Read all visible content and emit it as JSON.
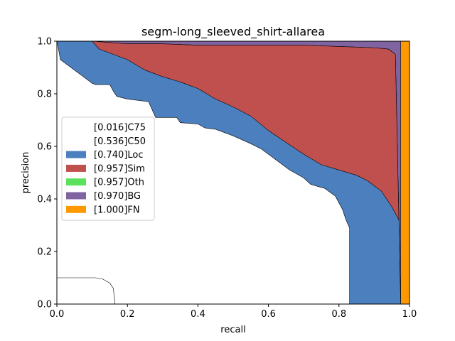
{
  "chart_data": {
    "type": "area",
    "title": "segm-long_sleeved_shirt-allarea",
    "xlabel": "recall",
    "ylabel": "precision",
    "xlim": [
      0,
      1
    ],
    "ylim": [
      0,
      1
    ],
    "xticks": [
      "0.0",
      "0.2",
      "0.4",
      "0.6",
      "0.8",
      "1.0"
    ],
    "yticks": [
      "0.0",
      "0.2",
      "0.4",
      "0.6",
      "0.8",
      "1.0"
    ],
    "grid": false,
    "legend_position": "center-left",
    "series": [
      {
        "name": "[0.016]C75",
        "color": "#ffffff",
        "points": [
          [
            0,
            0.1
          ],
          [
            0.11,
            0.1
          ],
          [
            0.13,
            0.095
          ],
          [
            0.15,
            0.08
          ],
          [
            0.16,
            0.06
          ],
          [
            0.165,
            0.0
          ]
        ]
      },
      {
        "name": "[0.536]C50",
        "color": "#ffffff",
        "points": [
          [
            0,
            1.0
          ],
          [
            0.002,
            0.99
          ],
          [
            0.01,
            0.93
          ],
          [
            0.04,
            0.9
          ],
          [
            0.06,
            0.88
          ],
          [
            0.08,
            0.86
          ],
          [
            0.1,
            0.84
          ],
          [
            0.11,
            0.835
          ],
          [
            0.15,
            0.835
          ],
          [
            0.16,
            0.81
          ],
          [
            0.17,
            0.79
          ],
          [
            0.2,
            0.78
          ],
          [
            0.26,
            0.77
          ],
          [
            0.28,
            0.71
          ],
          [
            0.34,
            0.71
          ],
          [
            0.35,
            0.69
          ],
          [
            0.4,
            0.685
          ],
          [
            0.42,
            0.67
          ],
          [
            0.45,
            0.665
          ],
          [
            0.5,
            0.64
          ],
          [
            0.55,
            0.61
          ],
          [
            0.58,
            0.59
          ],
          [
            0.62,
            0.55
          ],
          [
            0.66,
            0.51
          ],
          [
            0.7,
            0.48
          ],
          [
            0.72,
            0.455
          ],
          [
            0.76,
            0.44
          ],
          [
            0.79,
            0.41
          ],
          [
            0.81,
            0.36
          ],
          [
            0.82,
            0.32
          ],
          [
            0.83,
            0.29
          ],
          [
            0.83,
            0.0
          ]
        ]
      },
      {
        "name": "[0.740]Loc",
        "color": "#4c7fbe",
        "points": [
          [
            0,
            1.0
          ],
          [
            0.1,
            1.0
          ],
          [
            0.12,
            0.97
          ],
          [
            0.15,
            0.955
          ],
          [
            0.2,
            0.93
          ],
          [
            0.25,
            0.89
          ],
          [
            0.3,
            0.865
          ],
          [
            0.35,
            0.845
          ],
          [
            0.4,
            0.82
          ],
          [
            0.45,
            0.78
          ],
          [
            0.5,
            0.75
          ],
          [
            0.55,
            0.715
          ],
          [
            0.6,
            0.66
          ],
          [
            0.65,
            0.615
          ],
          [
            0.7,
            0.57
          ],
          [
            0.75,
            0.53
          ],
          [
            0.8,
            0.51
          ],
          [
            0.85,
            0.49
          ],
          [
            0.88,
            0.47
          ],
          [
            0.92,
            0.43
          ],
          [
            0.95,
            0.37
          ],
          [
            0.97,
            0.32
          ],
          [
            0.975,
            0.0
          ]
        ]
      },
      {
        "name": "[0.957]Sim",
        "color": "#c0504d",
        "points": [
          [
            0,
            1.0
          ],
          [
            0.1,
            1.0
          ],
          [
            0.2,
            0.99
          ],
          [
            0.3,
            0.99
          ],
          [
            0.4,
            0.985
          ],
          [
            0.5,
            0.985
          ],
          [
            0.6,
            0.985
          ],
          [
            0.7,
            0.985
          ],
          [
            0.8,
            0.98
          ],
          [
            0.9,
            0.975
          ],
          [
            0.94,
            0.97
          ],
          [
            0.96,
            0.95
          ],
          [
            0.975,
            0.0
          ]
        ]
      },
      {
        "name": "[0.957]Oth",
        "color": "#5be15b",
        "points": [
          [
            0,
            1.0
          ],
          [
            0.1,
            1.0
          ],
          [
            0.2,
            0.99
          ],
          [
            0.3,
            0.99
          ],
          [
            0.4,
            0.985
          ],
          [
            0.5,
            0.985
          ],
          [
            0.6,
            0.985
          ],
          [
            0.7,
            0.985
          ],
          [
            0.8,
            0.98
          ],
          [
            0.9,
            0.975
          ],
          [
            0.94,
            0.97
          ],
          [
            0.96,
            0.95
          ],
          [
            0.975,
            0.0
          ]
        ]
      },
      {
        "name": "[0.970]BG",
        "color": "#8064a2",
        "points": [
          [
            0,
            1.0
          ],
          [
            0.975,
            1.0
          ],
          [
            0.975,
            0.0
          ]
        ]
      },
      {
        "name": "[1.000]FN",
        "color": "#ff9900",
        "points": [
          [
            0,
            1.0
          ],
          [
            1.0,
            1.0
          ],
          [
            1.0,
            0.0
          ]
        ]
      }
    ]
  }
}
